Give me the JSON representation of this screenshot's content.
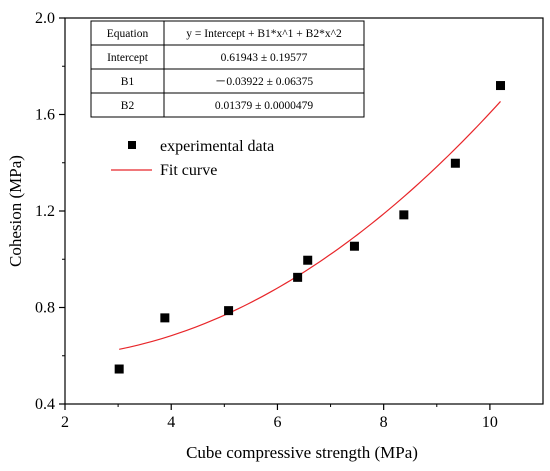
{
  "chart_data": {
    "type": "scatter",
    "xlabel": "Cube compressive strength (MPa)",
    "ylabel": "Cohesion (MPa)",
    "xlim": [
      2,
      11
    ],
    "ylim": [
      0.4,
      2.0
    ],
    "xticks": [
      "2",
      "4",
      "6",
      "8",
      "10"
    ],
    "yticks": [
      "0.4",
      "0.8",
      "1.2",
      "1.6",
      "2.0"
    ],
    "grid": false,
    "legend_position": "upper-left",
    "series": [
      {
        "name": "experimental data",
        "kind": "scatter",
        "marker": "square",
        "color": "#000000",
        "points": [
          {
            "x": 3.02,
            "y": 0.545
          },
          {
            "x": 3.88,
            "y": 0.757
          },
          {
            "x": 5.08,
            "y": 0.787
          },
          {
            "x": 6.38,
            "y": 0.925
          },
          {
            "x": 6.57,
            "y": 0.996
          },
          {
            "x": 7.45,
            "y": 1.054
          },
          {
            "x": 8.38,
            "y": 1.184
          },
          {
            "x": 9.35,
            "y": 1.398
          },
          {
            "x": 10.2,
            "y": 1.72
          }
        ]
      },
      {
        "name": "Fit curve",
        "kind": "line",
        "color": "#e8262a",
        "model": {
          "intercept": 0.61943,
          "b1": -0.03922,
          "b2": 0.01379
        },
        "x_range": [
          3.02,
          10.2
        ]
      }
    ],
    "fit_table": {
      "rows": [
        {
          "label": "Equation",
          "value": "y = Intercept + B1*x^1 + B2*x^2"
        },
        {
          "label": "Intercept",
          "value": "0.61943 ± 0.19577"
        },
        {
          "label": "B1",
          "value": "－0.03922 ± 0.06375"
        },
        {
          "label": "B2",
          "value": "0.01379 ± 0.0000479"
        }
      ]
    }
  }
}
